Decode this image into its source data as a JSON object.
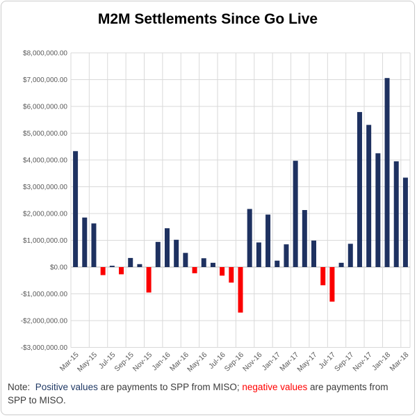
{
  "page": {
    "title": "M2M Settlements Since Go Live"
  },
  "note": {
    "prefix": "Note:  ",
    "positive_label": "Positive values",
    "middle": " are payments to SPP from MISO; ",
    "negative_label": "negative values",
    "suffix": " are payments from SPP to MISO."
  },
  "colors": {
    "positive_bar": "#1e3160",
    "negative_bar": "#fb0000",
    "grid_line": "#d9d9d9",
    "zero_line": "#b3b3b3",
    "axis_text": "#595959",
    "note_positive": "#1f3864",
    "note_negative": "#ff0000"
  },
  "chart_data": {
    "type": "bar",
    "title": "M2M Settlements Since Go Live",
    "xlabel": "",
    "ylabel": "",
    "ylim": [
      -3000000,
      8000000
    ],
    "y_tick_interval": 1000000,
    "grid": true,
    "legend": "none",
    "y_tick_labels": [
      "$8,000,000.00",
      "$7,000,000.00",
      "$6,000,000.00",
      "$5,000,000.00",
      "$4,000,000.00",
      "$3,000,000.00",
      "$2,000,000.00",
      "$1,000,000.00",
      "$0.00",
      "-$1,000,000.00",
      "-$2,000,000.00",
      "-$3,000,000.00"
    ],
    "x_tick_labels": [
      "Mar-15",
      "May-15",
      "Jul-15",
      "Sep-15",
      "Nov-15",
      "Jan-16",
      "Mar-16",
      "May-16",
      "Jul-16",
      "Sep-16",
      "Nov-16",
      "Jan-17",
      "Mar-17",
      "May-17",
      "Jul-17",
      "Sep-17",
      "Nov-17",
      "Jan-18",
      "Mar-18"
    ],
    "categories": [
      "Mar-15",
      "Apr-15",
      "May-15",
      "Jun-15",
      "Jul-15",
      "Aug-15",
      "Sep-15",
      "Oct-15",
      "Nov-15",
      "Dec-15",
      "Jan-16",
      "Feb-16",
      "Mar-16",
      "Apr-16",
      "May-16",
      "Jun-16",
      "Jul-16",
      "Aug-16",
      "Sep-16",
      "Oct-16",
      "Nov-16",
      "Dec-16",
      "Jan-17",
      "Feb-17",
      "Mar-17",
      "Apr-17",
      "May-17",
      "Jun-17",
      "Jul-17",
      "Aug-17",
      "Sep-17",
      "Oct-17",
      "Nov-17",
      "Dec-17",
      "Jan-18",
      "Feb-18",
      "Mar-18"
    ],
    "values": [
      4330000,
      1850000,
      1630000,
      -300000,
      50000,
      -270000,
      340000,
      110000,
      -950000,
      940000,
      1450000,
      1020000,
      530000,
      -230000,
      330000,
      160000,
      -320000,
      -580000,
      -1700000,
      2170000,
      920000,
      1960000,
      240000,
      850000,
      3970000,
      2130000,
      990000,
      -680000,
      -1290000,
      160000,
      870000,
      5790000,
      5310000,
      4250000,
      7060000,
      3950000,
      3340000
    ]
  }
}
